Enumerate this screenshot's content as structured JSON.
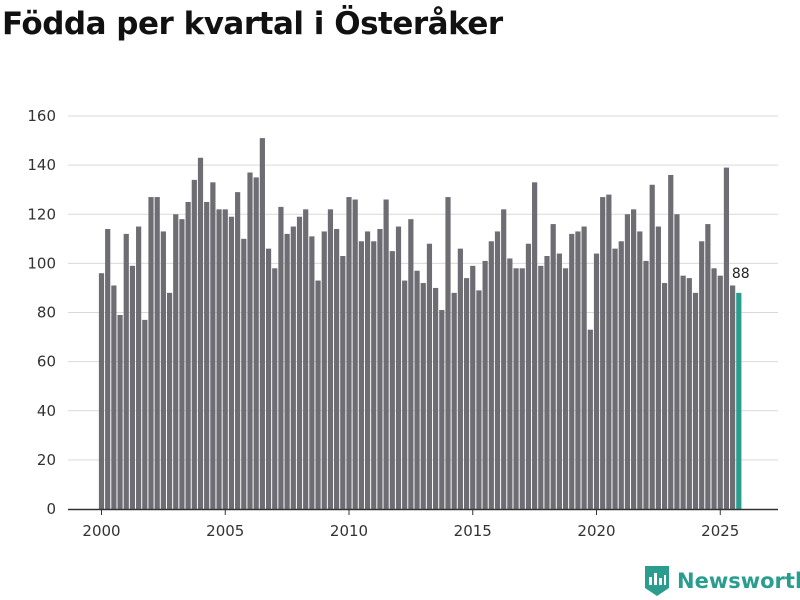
{
  "chart_data": {
    "type": "bar",
    "title": "Födda per kvartal i Österåker",
    "xlabel": "",
    "ylabel": "",
    "ylim": [
      0,
      160
    ],
    "yticks": [
      0,
      20,
      40,
      60,
      80,
      100,
      120,
      140,
      160
    ],
    "xticks": [
      2000,
      2005,
      2010,
      2015,
      2020,
      2025
    ],
    "x_start_year": 2000,
    "grid": true,
    "colors": {
      "default": "#6e6d73",
      "highlight": "#2a9d8f",
      "grid": "#d9d9d9",
      "axis": "#333333"
    },
    "highlight_index": 103,
    "highlight_label": "88",
    "values": [
      96,
      114,
      91,
      79,
      112,
      99,
      115,
      77,
      127,
      127,
      113,
      88,
      120,
      118,
      125,
      134,
      143,
      125,
      133,
      122,
      122,
      119,
      129,
      110,
      137,
      135,
      151,
      106,
      98,
      123,
      112,
      115,
      119,
      122,
      111,
      93,
      113,
      122,
      114,
      103,
      127,
      126,
      109,
      113,
      109,
      114,
      126,
      105,
      115,
      93,
      118,
      97,
      92,
      108,
      90,
      81,
      127,
      88,
      106,
      94,
      99,
      89,
      101,
      109,
      113,
      122,
      102,
      98,
      98,
      108,
      133,
      99,
      103,
      116,
      104,
      98,
      112,
      113,
      115,
      73,
      104,
      127,
      128,
      106,
      109,
      120,
      122,
      113,
      101,
      132,
      115,
      92,
      136,
      120,
      95,
      94,
      88,
      109,
      116,
      98,
      95,
      139,
      91,
      88
    ]
  },
  "brand": {
    "name": "Newsworthy",
    "icon": "newsworthy-logo-icon"
  }
}
